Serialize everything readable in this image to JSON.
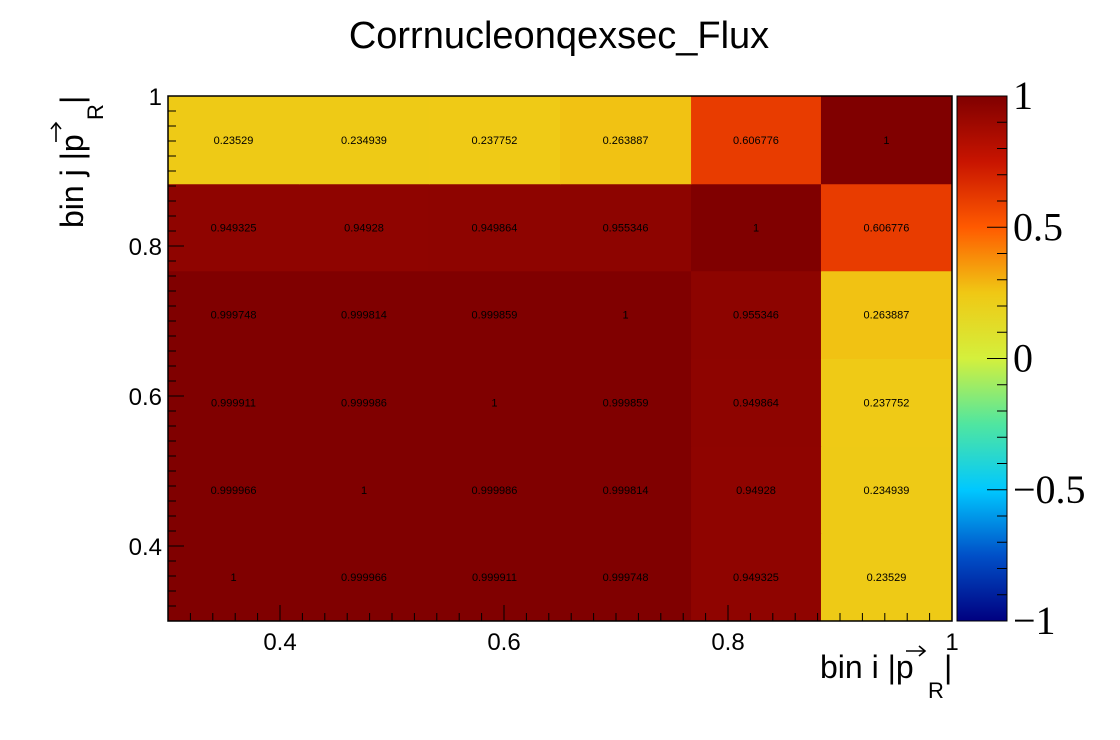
{
  "title": "Corrnucleonqexsec_Flux",
  "chart_data": {
    "type": "heatmap",
    "title": "Corrnucleonqexsec_Flux",
    "xlabel": "bin i |p_R|",
    "ylabel": "bin j |p_R|",
    "xlabel_parts": {
      "main": "bin i |p",
      "sub": "R",
      "end": "|"
    },
    "ylabel_parts": {
      "main": "bin j |p",
      "sub": "R",
      "end": "|"
    },
    "x_edges": [
      0.3,
      0.417,
      0.533,
      0.65,
      0.767,
      0.883,
      1.0
    ],
    "y_edges": [
      0.3,
      0.417,
      0.533,
      0.65,
      0.767,
      0.883,
      1.0
    ],
    "xlim": [
      0.3,
      1.0
    ],
    "ylim": [
      0.3,
      1.0
    ],
    "x_ticks": [
      0.4,
      0.6,
      0.8,
      1.0
    ],
    "x_tick_labels": [
      "0.4",
      "0.6",
      "0.8",
      "1"
    ],
    "y_ticks": [
      0.4,
      0.6,
      0.8,
      1.0
    ],
    "y_tick_labels": [
      "0.4",
      "0.6",
      "0.8",
      "1"
    ],
    "values": [
      [
        1,
        0.999966,
        0.999911,
        0.999748,
        0.949325,
        0.23529
      ],
      [
        0.999966,
        1,
        0.999986,
        0.999814,
        0.94928,
        0.234939
      ],
      [
        0.999911,
        0.999986,
        1,
        0.999859,
        0.949864,
        0.237752
      ],
      [
        0.999748,
        0.999814,
        0.999859,
        1,
        0.955346,
        0.263887
      ],
      [
        0.949325,
        0.94928,
        0.949864,
        0.955346,
        1,
        0.606776
      ],
      [
        0.23529,
        0.234939,
        0.237752,
        0.263887,
        0.606776,
        1
      ]
    ],
    "labels": [
      [
        "1",
        "0.999966",
        "0.999911",
        "0.999748",
        "0.949325",
        "0.23529"
      ],
      [
        "0.999966",
        "1",
        "0.999986",
        "0.999814",
        "0.94928",
        "0.234939"
      ],
      [
        "0.999911",
        "0.999986",
        "1",
        "0.999859",
        "0.949864",
        "0.237752"
      ],
      [
        "0.999748",
        "0.999814",
        "0.999859",
        "1",
        "0.955346",
        "0.263887"
      ],
      [
        "0.949325",
        "0.94928",
        "0.949864",
        "0.955346",
        "1",
        "0.606776"
      ],
      [
        "0.23529",
        "0.234939",
        "0.237752",
        "0.263887",
        "0.606776",
        "1"
      ]
    ],
    "zlim": [
      -1,
      1
    ],
    "colorbar_ticks": [
      -1,
      -0.5,
      0,
      0.5,
      1
    ],
    "colorbar_tick_labels": [
      "−1",
      "−0.5",
      "0",
      "0.5",
      "1"
    ],
    "colormap": [
      "#000080",
      "#0050c8",
      "#00c8ff",
      "#50e6a0",
      "#d4f03c",
      "#f0c814",
      "#ff5a00",
      "#c81400",
      "#800000"
    ],
    "grid": false,
    "legend": "colorbar-right"
  }
}
